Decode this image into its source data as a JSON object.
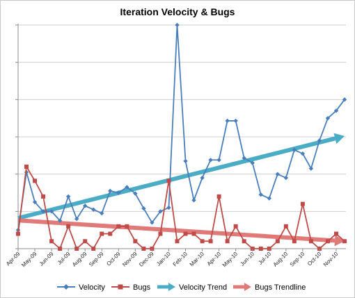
{
  "chart_data": {
    "type": "line",
    "title": "Iteration Velocity & Bugs",
    "xlabel": "",
    "ylabel": "",
    "ylim": [
      0,
      60
    ],
    "grid": true,
    "legend_position": "bottom",
    "x_tick_labels": [
      "Apr-09",
      "May-09",
      "Jun-09",
      "Jul-09",
      "Aug-09",
      "Sep-09",
      "Oct-09",
      "Nov-09",
      "Dec-09",
      "Jan-10",
      "Feb-10",
      "Mar-10",
      "Apr-10",
      "May-10",
      "Jun-10",
      "Jul-10",
      "Aug-10",
      "Sep-10",
      "Oct-10",
      "Nov-10"
    ],
    "series": [
      {
        "name": "Velocity",
        "color": "#4a7ebb",
        "marker": "diamond",
        "values": [
          5,
          20.5,
          12.5,
          10,
          10,
          7.5,
          14,
          8,
          11.5,
          10.5,
          9.5,
          15.5,
          15,
          16.5,
          14.8,
          10.8,
          7,
          10,
          11,
          60,
          23.5,
          13,
          19,
          23.8,
          23.8,
          34.3,
          34.3,
          24.3,
          23,
          14.5,
          13.5,
          20,
          19,
          26.5,
          25.5,
          21.5,
          29,
          35,
          37,
          40
        ]
      },
      {
        "name": "Bugs",
        "color": "#be4b48",
        "marker": "square",
        "values": [
          4,
          22,
          18.2,
          14,
          2,
          0,
          6,
          0,
          2,
          0,
          4,
          4,
          6,
          6,
          2,
          0,
          0,
          4,
          18.2,
          2,
          4,
          4,
          2,
          2,
          14,
          2,
          6,
          2,
          0,
          0,
          0,
          2,
          6,
          2,
          12,
          2,
          0,
          2,
          4,
          2
        ]
      },
      {
        "name": "Velocity Trend",
        "color": "#4bacc6",
        "type": "trend-arrow",
        "values": [
          8.2,
          30.2
        ]
      },
      {
        "name": "Bugs Trendline",
        "color": "#e07a78",
        "type": "trend-arrow",
        "values": [
          7.6,
          2.0
        ]
      }
    ]
  }
}
